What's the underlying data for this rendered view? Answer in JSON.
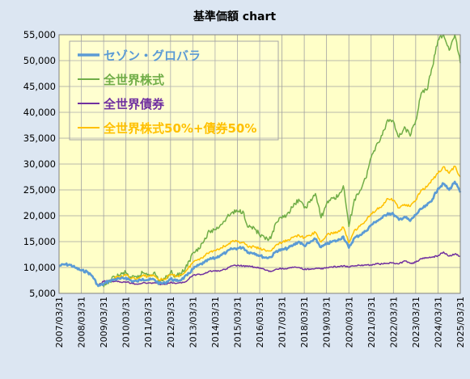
{
  "chart_data": {
    "type": "line",
    "title": "基準価額 chart",
    "xlabel": "",
    "ylabel": "",
    "ylim": [
      5000,
      55000
    ],
    "xlim": [
      "2007-03-31",
      "2025-03-31"
    ],
    "y_ticks": [
      "5,000",
      "10,000",
      "15,000",
      "20,000",
      "25,000",
      "30,000",
      "35,000",
      "40,000",
      "45,000",
      "50,000",
      "55,000"
    ],
    "x_ticks": [
      "2007/03/31",
      "2008/03/31",
      "2009/03/31",
      "2010/03/31",
      "2011/03/31",
      "2012/03/31",
      "2013/03/31",
      "2014/03/31",
      "2015/03/31",
      "2016/03/31",
      "2017/03/31",
      "2018/03/31",
      "2019/03/31",
      "2020/03/31",
      "2021/03/31",
      "2022/03/31",
      "2023/03/31",
      "2024/03/31",
      "2025/03/31"
    ],
    "grid": true,
    "legend_position": "top-left",
    "background_color": "#ffffc8",
    "series": [
      {
        "name": "セゾン・グロバラ",
        "color": "#5b9bd5",
        "x": [
          "2007-03-31",
          "2007-06-30",
          "2007-09-30",
          "2007-12-31",
          "2008-03-31",
          "2008-06-30",
          "2008-09-30",
          "2008-12-31",
          "2009-03-31",
          "2009-06-30",
          "2009-09-30",
          "2009-12-31",
          "2010-03-31",
          "2010-06-30",
          "2010-09-30",
          "2010-12-31",
          "2011-03-31",
          "2011-06-30",
          "2011-09-30",
          "2011-12-31",
          "2012-03-31",
          "2012-06-30",
          "2012-09-30",
          "2012-12-31",
          "2013-03-31",
          "2013-06-30",
          "2013-09-30",
          "2013-12-31",
          "2014-03-31",
          "2014-06-30",
          "2014-09-30",
          "2014-12-31",
          "2015-03-31",
          "2015-06-30",
          "2015-09-30",
          "2015-12-31",
          "2016-03-31",
          "2016-06-30",
          "2016-09-30",
          "2016-12-31",
          "2017-03-31",
          "2017-06-30",
          "2017-09-30",
          "2017-12-31",
          "2018-03-31",
          "2018-06-30",
          "2018-09-30",
          "2018-12-31",
          "2019-03-31",
          "2019-06-30",
          "2019-09-30",
          "2019-12-31",
          "2020-03-31",
          "2020-06-30",
          "2020-09-30",
          "2020-12-31",
          "2021-03-31",
          "2021-06-30",
          "2021-09-30",
          "2021-12-31",
          "2022-03-31",
          "2022-06-30",
          "2022-09-30",
          "2022-12-31",
          "2023-03-31",
          "2023-06-30",
          "2023-09-30",
          "2023-12-31",
          "2024-03-31",
          "2024-06-30",
          "2024-09-30",
          "2024-12-31",
          "2025-03-31"
        ],
        "values": [
          10300,
          10600,
          10500,
          9900,
          9400,
          9200,
          8300,
          6400,
          6800,
          7400,
          7700,
          7800,
          8000,
          7400,
          7300,
          7800,
          7600,
          7700,
          6900,
          7000,
          7800,
          7400,
          7700,
          8500,
          9700,
          10400,
          10900,
          11600,
          11800,
          12400,
          12900,
          13600,
          13700,
          13900,
          12900,
          12800,
          12300,
          11900,
          12000,
          13200,
          13400,
          13700,
          14300,
          15000,
          14200,
          14800,
          15500,
          13900,
          14500,
          15000,
          15200,
          16000,
          13800,
          15700,
          16300,
          17000,
          18200,
          19000,
          19600,
          20500,
          20300,
          19200,
          19800,
          19000,
          20200,
          21300,
          22000,
          23200,
          25300,
          26200,
          25000,
          26600,
          24500
        ]
      },
      {
        "name": "全世界株式",
        "color": "#70ad47",
        "x": [
          "2009-03-31",
          "2009-06-30",
          "2009-09-30",
          "2009-12-31",
          "2010-03-31",
          "2010-06-30",
          "2010-09-30",
          "2010-12-31",
          "2011-03-31",
          "2011-06-30",
          "2011-09-30",
          "2011-12-31",
          "2012-03-31",
          "2012-06-30",
          "2012-09-30",
          "2012-12-31",
          "2013-03-31",
          "2013-06-30",
          "2013-09-30",
          "2013-12-31",
          "2014-03-31",
          "2014-06-30",
          "2014-09-30",
          "2014-12-31",
          "2015-03-31",
          "2015-06-30",
          "2015-09-30",
          "2015-12-31",
          "2016-03-31",
          "2016-06-30",
          "2016-09-30",
          "2016-12-31",
          "2017-03-31",
          "2017-06-30",
          "2017-09-30",
          "2017-12-31",
          "2018-03-31",
          "2018-06-30",
          "2018-09-30",
          "2018-12-31",
          "2019-03-31",
          "2019-06-30",
          "2019-09-30",
          "2019-12-31",
          "2020-03-31",
          "2020-06-30",
          "2020-09-30",
          "2020-12-31",
          "2021-03-31",
          "2021-06-30",
          "2021-09-30",
          "2021-12-31",
          "2022-03-31",
          "2022-06-30",
          "2022-09-30",
          "2022-12-31",
          "2023-03-31",
          "2023-06-30",
          "2023-09-30",
          "2023-12-31",
          "2024-03-31",
          "2024-06-30",
          "2024-09-30",
          "2024-12-31",
          "2025-03-31"
        ],
        "values": [
          6200,
          7300,
          8100,
          8600,
          9000,
          7900,
          8000,
          9000,
          8700,
          9000,
          7400,
          7700,
          9100,
          8400,
          8900,
          10300,
          12800,
          13800,
          15100,
          17000,
          17300,
          18300,
          19500,
          20600,
          20800,
          20900,
          17800,
          17700,
          16200,
          15400,
          15600,
          18700,
          19500,
          20500,
          21700,
          23200,
          21500,
          22600,
          24300,
          19600,
          22300,
          23500,
          23600,
          25800,
          17900,
          23200,
          24900,
          27200,
          31300,
          33900,
          35600,
          38600,
          38300,
          35200,
          37200,
          35400,
          38400,
          43700,
          44300,
          48800,
          54000,
          55000,
          52000,
          55000,
          49500
        ]
      },
      {
        "name": "全世界債券",
        "color": "#7030a0",
        "x": [
          "2008-12-31",
          "2009-03-31",
          "2009-06-30",
          "2009-09-30",
          "2009-12-31",
          "2010-03-31",
          "2010-06-30",
          "2010-09-30",
          "2010-12-31",
          "2011-03-31",
          "2011-06-30",
          "2011-09-30",
          "2011-12-31",
          "2012-03-31",
          "2012-06-30",
          "2012-09-30",
          "2012-12-31",
          "2013-03-31",
          "2013-06-30",
          "2013-09-30",
          "2013-12-31",
          "2014-03-31",
          "2014-06-30",
          "2014-09-30",
          "2014-12-31",
          "2015-03-31",
          "2015-06-30",
          "2015-09-30",
          "2015-12-31",
          "2016-03-31",
          "2016-06-30",
          "2016-09-30",
          "2016-12-31",
          "2017-03-31",
          "2017-06-30",
          "2017-09-30",
          "2017-12-31",
          "2018-03-31",
          "2018-06-30",
          "2018-09-30",
          "2018-12-31",
          "2019-03-31",
          "2019-06-30",
          "2019-09-30",
          "2019-12-31",
          "2020-03-31",
          "2020-06-30",
          "2020-09-30",
          "2020-12-31",
          "2021-03-31",
          "2021-06-30",
          "2021-09-30",
          "2021-12-31",
          "2022-03-31",
          "2022-06-30",
          "2022-09-30",
          "2022-12-31",
          "2023-03-31",
          "2023-06-30",
          "2023-09-30",
          "2023-12-31",
          "2024-03-31",
          "2024-06-30",
          "2024-09-30",
          "2024-12-31",
          "2025-03-31"
        ],
        "values": [
          6600,
          7300,
          7500,
          7300,
          7200,
          7200,
          7000,
          6800,
          7000,
          7000,
          7000,
          6800,
          6700,
          7100,
          6900,
          7000,
          7500,
          8500,
          8700,
          8800,
          9300,
          9300,
          9400,
          9700,
          10300,
          10400,
          10300,
          10200,
          10100,
          9900,
          9500,
          9200,
          9700,
          9800,
          9800,
          10000,
          10000,
          9600,
          9700,
          9800,
          9700,
          10000,
          10100,
          10200,
          10300,
          10100,
          10300,
          10400,
          10500,
          10500,
          10700,
          10700,
          10800,
          10900,
          10700,
          11300,
          10800,
          11000,
          11700,
          11900,
          12000,
          12300,
          13000,
          12200,
          12600,
          12200
        ]
      },
      {
        "name": "全世界株式50%+債券50%",
        "color": "#ffc000",
        "x": [
          "2009-03-31",
          "2009-06-30",
          "2009-09-30",
          "2009-12-31",
          "2010-03-31",
          "2010-06-30",
          "2010-09-30",
          "2010-12-31",
          "2011-03-31",
          "2011-06-30",
          "2011-09-30",
          "2011-12-31",
          "2012-03-31",
          "2012-06-30",
          "2012-09-30",
          "2012-12-31",
          "2013-03-31",
          "2013-06-30",
          "2013-09-30",
          "2013-12-31",
          "2014-03-31",
          "2014-06-30",
          "2014-09-30",
          "2014-12-31",
          "2015-03-31",
          "2015-06-30",
          "2015-09-30",
          "2015-12-31",
          "2016-03-31",
          "2016-06-30",
          "2016-09-30",
          "2016-12-31",
          "2017-03-31",
          "2017-06-30",
          "2017-09-30",
          "2017-12-31",
          "2018-03-31",
          "2018-06-30",
          "2018-09-30",
          "2018-12-31",
          "2019-03-31",
          "2019-06-30",
          "2019-09-30",
          "2019-12-31",
          "2020-03-31",
          "2020-06-30",
          "2020-09-30",
          "2020-12-31",
          "2021-03-31",
          "2021-06-30",
          "2021-09-30",
          "2021-12-31",
          "2022-03-31",
          "2022-06-30",
          "2022-09-30",
          "2022-12-31",
          "2023-03-31",
          "2023-06-30",
          "2023-09-30",
          "2023-12-31",
          "2024-03-31",
          "2024-06-30",
          "2024-09-30",
          "2024-12-31",
          "2025-03-31"
        ],
        "values": [
          6600,
          7500,
          8000,
          8200,
          8500,
          7900,
          7800,
          8400,
          8300,
          8500,
          7600,
          7800,
          8600,
          8300,
          8600,
          9600,
          11000,
          11600,
          12200,
          13000,
          13300,
          13800,
          14300,
          15000,
          15000,
          14900,
          13900,
          14000,
          13600,
          13300,
          13200,
          14400,
          14800,
          15300,
          15800,
          16300,
          15700,
          16200,
          16800,
          14900,
          16200,
          16700,
          16800,
          17800,
          14800,
          17200,
          18000,
          19000,
          20400,
          21200,
          22000,
          23300,
          23000,
          21500,
          22200,
          21800,
          23000,
          25000,
          25600,
          27000,
          28200,
          29500,
          28200,
          29600,
          27500
        ]
      }
    ]
  }
}
